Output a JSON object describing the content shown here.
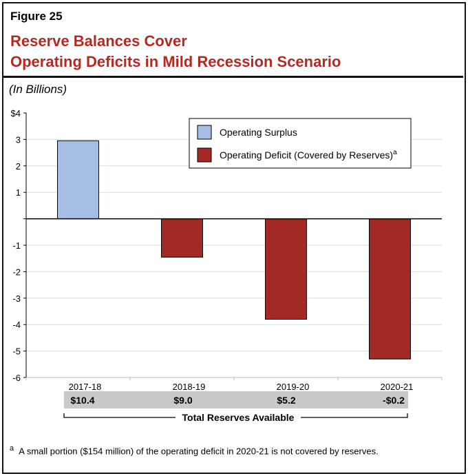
{
  "figure_label": "Figure 25",
  "title_line1": "Reserve Balances Cover",
  "title_line2": "Operating Deficits in Mild Recession Scenario",
  "subtitle": "(In Billions)",
  "chart_data": {
    "type": "bar",
    "categories": [
      "2017-18",
      "2018-19",
      "2019-20",
      "2020-21"
    ],
    "values": [
      2.95,
      -1.45,
      -3.8,
      -5.3
    ],
    "series": [
      {
        "name": "Operating Surplus",
        "color": "#a6bde4"
      },
      {
        "name": "Operating Deficit (Covered by Reserves)",
        "superscript": "a",
        "color": "#a32a24"
      }
    ],
    "ylim": [
      -6,
      4
    ],
    "yticks": [
      "$4",
      "3",
      "2",
      "1",
      "",
      "-1",
      "-2",
      "-3",
      "-4",
      "-5",
      "-6"
    ],
    "grid": true,
    "legend": "top-right",
    "reserves": [
      "$10.4",
      "$9.0",
      "$5.2",
      "-$0.2"
    ],
    "reserves_label": "Total Reserves Available"
  },
  "footnote": {
    "marker": "a",
    "text": "A small portion ($154 million) of the operating deficit in 2020-21 is not covered by reserves."
  }
}
